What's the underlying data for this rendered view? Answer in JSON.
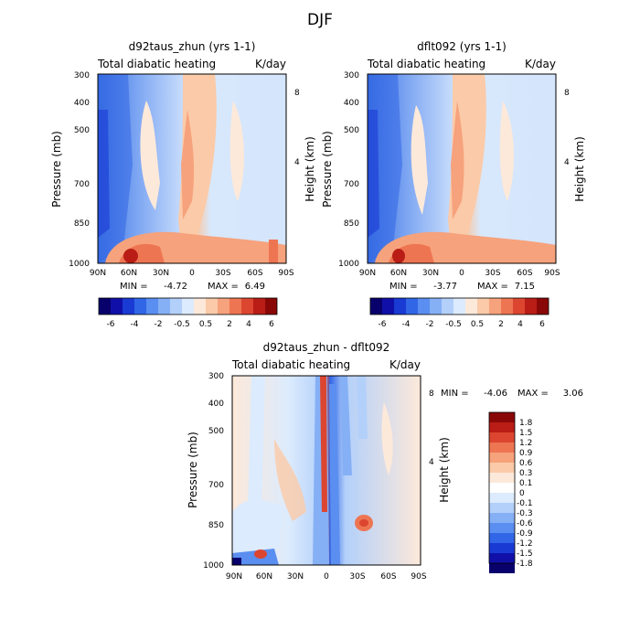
{
  "figure_title": "DJF",
  "chart_data": [
    {
      "type": "heatmap",
      "title": "d92taus_zhun (yrs 1-1)",
      "subtitle_left": "Total diabatic heating",
      "subtitle_right": "K/day",
      "xlabel": "",
      "ylabel": "Pressure (mb)",
      "ylabel_right": "Height (km)",
      "x_ticks": [
        "90N",
        "60N",
        "30N",
        "0",
        "30S",
        "60S",
        "90S"
      ],
      "y_ticks": [
        "300",
        "400",
        "500",
        "700",
        "850",
        "1000"
      ],
      "y2_ticks": [
        "8",
        "4"
      ],
      "xlim": [
        90,
        -90
      ],
      "ylim": [
        1000,
        300
      ],
      "stats": {
        "min_label": "MIN =",
        "min": "-4.72",
        "max_label": "MAX =",
        "max": "6.49"
      },
      "colorbar_ticks": [
        "-6",
        "-4",
        "-2",
        "-0.5",
        "0.5",
        "2",
        "4",
        "6"
      ]
    },
    {
      "type": "heatmap",
      "title": "dflt092 (yrs 1-1)",
      "subtitle_left": "Total diabatic heating",
      "subtitle_right": "K/day",
      "xlabel": "",
      "ylabel": "Pressure (mb)",
      "ylabel_right": "Height (km)",
      "x_ticks": [
        "90N",
        "60N",
        "30N",
        "0",
        "30S",
        "60S",
        "90S"
      ],
      "y_ticks": [
        "300",
        "400",
        "500",
        "700",
        "850",
        "1000"
      ],
      "y2_ticks": [
        "8",
        "4"
      ],
      "xlim": [
        90,
        -90
      ],
      "ylim": [
        1000,
        300
      ],
      "stats": {
        "min_label": "MIN =",
        "min": "-3.77",
        "max_label": "MAX =",
        "max": "7.15"
      },
      "colorbar_ticks": [
        "-6",
        "-4",
        "-2",
        "-0.5",
        "0.5",
        "2",
        "4",
        "6"
      ]
    },
    {
      "type": "heatmap",
      "title": "d92taus_zhun - dflt092",
      "subtitle_left": "Total diabatic heating",
      "subtitle_right": "K/day",
      "xlabel": "",
      "ylabel": "Pressure (mb)",
      "ylabel_right": "Height (km)",
      "x_ticks": [
        "90N",
        "60N",
        "30N",
        "0",
        "30S",
        "60S",
        "90S"
      ],
      "y_ticks": [
        "300",
        "400",
        "500",
        "700",
        "850",
        "1000"
      ],
      "y2_ticks": [
        "8",
        "4"
      ],
      "xlim": [
        90,
        -90
      ],
      "ylim": [
        1000,
        300
      ],
      "stats": {
        "min_label": "MIN =",
        "min": "-4.06",
        "max_label": "MAX =",
        "max": "3.06"
      },
      "colorbar_ticks": [
        "1.8",
        "1.5",
        "1.2",
        "0.9",
        "0.6",
        "0.3",
        "0.1",
        "0",
        "-0.1",
        "-0.3",
        "-0.6",
        "-0.9",
        "-1.2",
        "-1.5",
        "-1.8"
      ]
    }
  ],
  "colors": {
    "blue_red_scale": [
      "#08006b",
      "#1010a8",
      "#1a3ad4",
      "#3166e6",
      "#5a8ef0",
      "#86b0f5",
      "#b3d0fa",
      "#dcebfd",
      "#fde9da",
      "#fbcaa8",
      "#f6a27c",
      "#ee7552",
      "#dc4630",
      "#b91d16",
      "#8a0707"
    ]
  }
}
